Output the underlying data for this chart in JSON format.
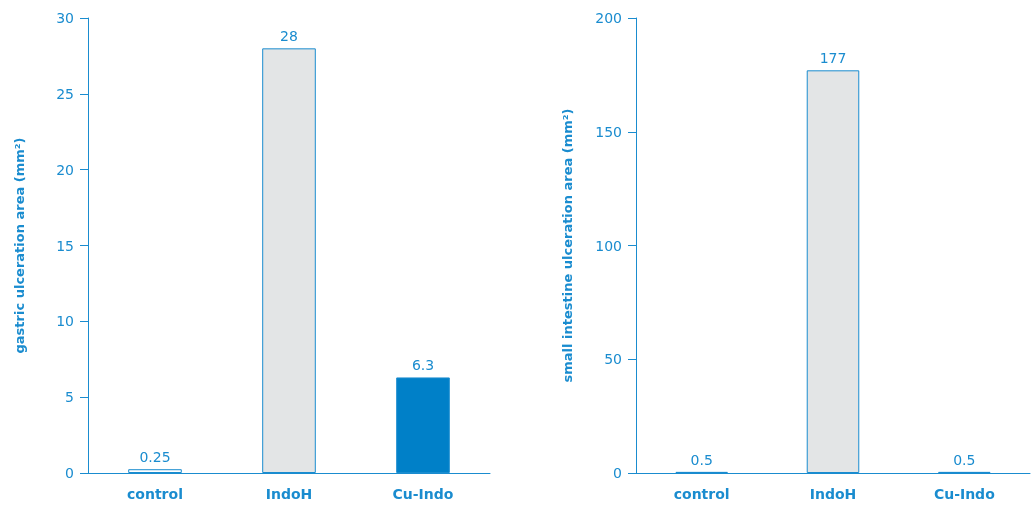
{
  "chart_data": [
    {
      "type": "bar",
      "ylabel": "gastric ulceration area (mm²)",
      "categories": [
        "control",
        "IndoH",
        "Cu-Indo"
      ],
      "values": [
        0.25,
        28,
        6.3
      ],
      "colors": [
        "#ffffff",
        "#e3e5e6",
        "#0080c8"
      ],
      "ylim": [
        0,
        30
      ],
      "yticks": [
        0,
        5,
        10,
        15,
        20,
        25,
        30
      ],
      "data_labels": true,
      "grid": false
    },
    {
      "type": "bar",
      "ylabel": "small intestine ulceration area (mm²)",
      "categories": [
        "control",
        "IndoH",
        "Cu-Indo"
      ],
      "values": [
        0.5,
        177,
        0.5
      ],
      "colors": [
        "#ffffff",
        "#e3e5e6",
        "#0080c8"
      ],
      "ylim": [
        0,
        200
      ],
      "yticks": [
        0,
        50,
        100,
        150,
        200
      ],
      "data_labels": true,
      "grid": false
    }
  ]
}
